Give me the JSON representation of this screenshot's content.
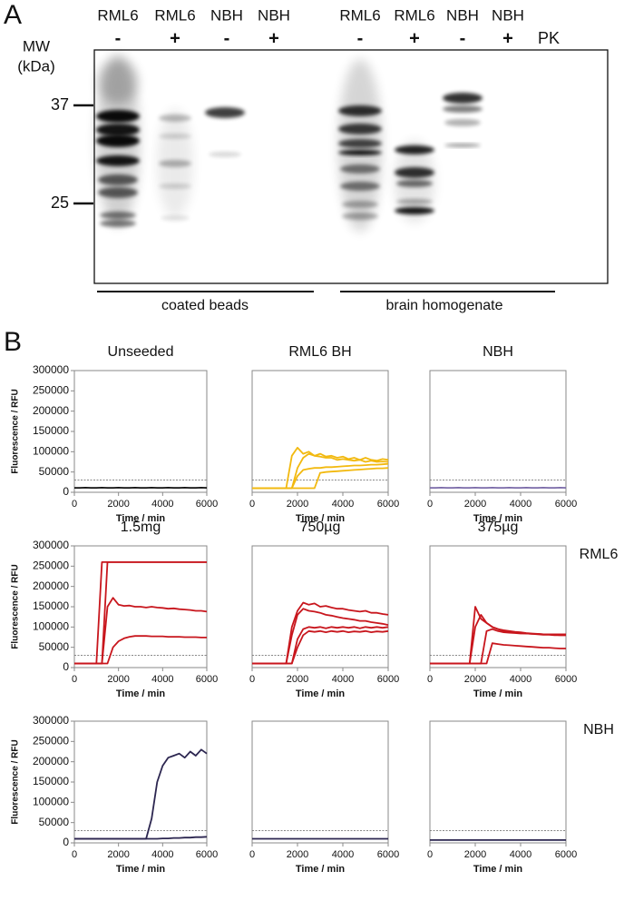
{
  "panel_a": {
    "label": "A",
    "lanes": [
      {
        "sample": "RML6",
        "pk": "-"
      },
      {
        "sample": "RML6",
        "pk": "+"
      },
      {
        "sample": "NBH",
        "pk": "-"
      },
      {
        "sample": "NBH",
        "pk": "+"
      },
      {
        "sample": "RML6",
        "pk": "-"
      },
      {
        "sample": "RML6",
        "pk": "+"
      },
      {
        "sample": "NBH",
        "pk": "-"
      },
      {
        "sample": "NBH",
        "pk": "+"
      }
    ],
    "pk_label": "PK",
    "mw_label": [
      "MW",
      "(kDa)"
    ],
    "markers": [
      "37",
      "25"
    ],
    "groups": [
      "coated beads",
      "brain homogenate"
    ]
  },
  "panel_b": {
    "label": "B"
  },
  "chart_data": [
    {
      "type": "line",
      "title": "Unseeded",
      "xlabel": "Time  / min",
      "ylabel": "Fluorescence / RFU",
      "x": [
        0,
        250,
        500,
        750,
        1000,
        1250,
        1500,
        1750,
        2000,
        2250,
        2500,
        2750,
        3000,
        3250,
        3500,
        3750,
        4000,
        4250,
        4500,
        4750,
        5000,
        5250,
        5500,
        5750,
        6000
      ],
      "xlim": [
        0,
        6000
      ],
      "xticks": [
        0,
        2000,
        4000,
        6000
      ],
      "ylim": [
        0,
        300000
      ],
      "yticks": [
        0,
        50000,
        100000,
        150000,
        200000,
        250000,
        300000
      ],
      "reference_line": 30000,
      "series": [
        {
          "color": "#111111",
          "values": [
            11000,
            11000,
            11500,
            11000,
            11000,
            11500,
            11000,
            11000,
            11500,
            11000,
            11000,
            11500,
            11000,
            11000,
            11500,
            11000,
            11000,
            11500,
            11000,
            11000,
            11500,
            11000,
            11000,
            11500,
            11000
          ]
        }
      ]
    },
    {
      "type": "line",
      "title": "RML6 BH",
      "xlabel": "Time  / min",
      "x": [
        0,
        250,
        500,
        750,
        1000,
        1250,
        1500,
        1750,
        2000,
        2250,
        2500,
        2750,
        3000,
        3250,
        3500,
        3750,
        4000,
        4250,
        4500,
        4750,
        5000,
        5250,
        5500,
        5750,
        6000
      ],
      "xlim": [
        0,
        6000
      ],
      "xticks": [
        0,
        2000,
        4000,
        6000
      ],
      "ylim": [
        0,
        300000
      ],
      "reference_line": 30000,
      "series": [
        {
          "color": "#f2b90f",
          "values": [
            10000,
            10000,
            10000,
            10000,
            10000,
            10000,
            10000,
            90000,
            110000,
            95000,
            100000,
            90000,
            95000,
            88000,
            90000,
            85000,
            88000,
            82000,
            85000,
            80000,
            85000,
            80000,
            78000,
            82000,
            80000
          ]
        },
        {
          "color": "#f2b90f",
          "values": [
            10000,
            10000,
            10000,
            10000,
            10000,
            10000,
            10000,
            10000,
            60000,
            85000,
            95000,
            90000,
            88000,
            85000,
            85000,
            80000,
            82000,
            80000,
            78000,
            80000,
            75000,
            78000,
            75000,
            76000,
            75000
          ]
        },
        {
          "color": "#f2b90f",
          "values": [
            10000,
            10000,
            10000,
            10000,
            10000,
            10000,
            10000,
            10000,
            40000,
            55000,
            58000,
            60000,
            60000,
            62000,
            62000,
            63000,
            64000,
            65000,
            66000,
            66000,
            67000,
            68000,
            68000,
            69000,
            70000
          ]
        },
        {
          "color": "#f2b90f",
          "values": [
            10000,
            10000,
            10000,
            10000,
            10000,
            10000,
            10000,
            10000,
            10000,
            10000,
            10000,
            10000,
            48000,
            50000,
            51000,
            52000,
            53000,
            54000,
            55000,
            56000,
            57000,
            58000,
            59000,
            59000,
            60000
          ]
        }
      ]
    },
    {
      "type": "line",
      "title": "NBH",
      "xlabel": "Time  / min",
      "x": [
        0,
        250,
        500,
        750,
        1000,
        1250,
        1500,
        1750,
        2000,
        2250,
        2500,
        2750,
        3000,
        3250,
        3500,
        3750,
        4000,
        4250,
        4500,
        4750,
        5000,
        5250,
        5500,
        5750,
        6000
      ],
      "xlim": [
        0,
        6000
      ],
      "xticks": [
        0,
        2000,
        4000,
        6000
      ],
      "ylim": [
        0,
        300000
      ],
      "reference_line": 30000,
      "series": [
        {
          "color": "#7a6aa8",
          "values": [
            11000,
            11000,
            11500,
            11000,
            11000,
            11500,
            11000,
            11000,
            11500,
            11000,
            11000,
            11500,
            11000,
            11000,
            11500,
            11000,
            11000,
            11500,
            11000,
            11000,
            11500,
            11000,
            11000,
            11500,
            11000
          ]
        }
      ]
    },
    {
      "type": "line",
      "title": "1.5mg",
      "xlabel": "Time  / min",
      "ylabel": "Fluorescence / RFU",
      "x": [
        0,
        250,
        500,
        750,
        1000,
        1250,
        1500,
        1750,
        2000,
        2250,
        2500,
        2750,
        3000,
        3250,
        3500,
        3750,
        4000,
        4250,
        4500,
        4750,
        5000,
        5250,
        5500,
        5750,
        6000
      ],
      "xlim": [
        0,
        6000
      ],
      "xticks": [
        0,
        2000,
        4000,
        6000
      ],
      "ylim": [
        0,
        300000
      ],
      "yticks": [
        0,
        50000,
        100000,
        150000,
        200000,
        250000,
        300000
      ],
      "reference_line": 30000,
      "series": [
        {
          "color": "#c8161d",
          "values": [
            10000,
            10000,
            10000,
            10000,
            10000,
            260000,
            260000,
            260000,
            260000,
            260000,
            260000,
            260000,
            260000,
            260000,
            260000,
            260000,
            260000,
            260000,
            260000,
            260000,
            260000,
            260000,
            260000,
            260000,
            260000
          ]
        },
        {
          "color": "#c8161d",
          "values": [
            10000,
            10000,
            10000,
            10000,
            10000,
            10000,
            260000,
            260000,
            260000,
            260000,
            260000,
            260000,
            260000,
            260000,
            260000,
            260000,
            260000,
            260000,
            260000,
            260000,
            260000,
            260000,
            260000,
            260000,
            260000
          ]
        },
        {
          "color": "#c8161d",
          "values": [
            10000,
            10000,
            10000,
            10000,
            10000,
            10000,
            150000,
            172000,
            155000,
            152000,
            153000,
            150000,
            150000,
            148000,
            150000,
            148000,
            147000,
            145000,
            146000,
            144000,
            143000,
            142000,
            140000,
            140000,
            138000
          ]
        },
        {
          "color": "#c8161d",
          "values": [
            10000,
            10000,
            10000,
            10000,
            10000,
            10000,
            10000,
            50000,
            65000,
            72000,
            76000,
            78000,
            78000,
            78000,
            77000,
            77000,
            77000,
            76000,
            76000,
            76000,
            75000,
            75000,
            75000,
            74000,
            74000
          ]
        }
      ]
    },
    {
      "type": "line",
      "title": "750µg",
      "xlabel": "Time  / min",
      "x": [
        0,
        250,
        500,
        750,
        1000,
        1250,
        1500,
        1750,
        2000,
        2250,
        2500,
        2750,
        3000,
        3250,
        3500,
        3750,
        4000,
        4250,
        4500,
        4750,
        5000,
        5250,
        5500,
        5750,
        6000
      ],
      "xlim": [
        0,
        6000
      ],
      "xticks": [
        0,
        2000,
        4000,
        6000
      ],
      "ylim": [
        0,
        300000
      ],
      "reference_line": 30000,
      "series": [
        {
          "color": "#c8161d",
          "values": [
            10000,
            10000,
            10000,
            10000,
            10000,
            10000,
            10000,
            100000,
            140000,
            160000,
            155000,
            158000,
            150000,
            152000,
            148000,
            145000,
            145000,
            142000,
            140000,
            138000,
            140000,
            135000,
            135000,
            132000,
            130000
          ]
        },
        {
          "color": "#c8161d",
          "values": [
            10000,
            10000,
            10000,
            10000,
            10000,
            10000,
            10000,
            80000,
            130000,
            145000,
            140000,
            138000,
            135000,
            130000,
            128000,
            125000,
            122000,
            120000,
            118000,
            115000,
            115000,
            112000,
            110000,
            108000,
            105000
          ]
        },
        {
          "color": "#c8161d",
          "values": [
            10000,
            10000,
            10000,
            10000,
            10000,
            10000,
            10000,
            10000,
            70000,
            95000,
            100000,
            98000,
            100000,
            97000,
            100000,
            98000,
            100000,
            98000,
            100000,
            97000,
            100000,
            98000,
            100000,
            98000,
            100000
          ]
        },
        {
          "color": "#c8161d",
          "values": [
            10000,
            10000,
            10000,
            10000,
            10000,
            10000,
            10000,
            10000,
            50000,
            80000,
            90000,
            88000,
            90000,
            87000,
            90000,
            88000,
            90000,
            87000,
            89000,
            88000,
            90000,
            87000,
            89000,
            88000,
            90000
          ]
        }
      ]
    },
    {
      "type": "line",
      "title": "375µg",
      "xlabel": "Time  / min",
      "side_label": "RML6",
      "x": [
        0,
        250,
        500,
        750,
        1000,
        1250,
        1500,
        1750,
        2000,
        2250,
        2500,
        2750,
        3000,
        3250,
        3500,
        3750,
        4000,
        4250,
        4500,
        4750,
        5000,
        5250,
        5500,
        5750,
        6000
      ],
      "xlim": [
        0,
        6000
      ],
      "xticks": [
        0,
        2000,
        4000,
        6000
      ],
      "ylim": [
        0,
        300000
      ],
      "reference_line": 30000,
      "series": [
        {
          "color": "#c8161d",
          "values": [
            10000,
            10000,
            10000,
            10000,
            10000,
            10000,
            10000,
            10000,
            150000,
            120000,
            110000,
            100000,
            95000,
            92000,
            90000,
            88000,
            87000,
            85000,
            84000,
            83000,
            82000,
            82000,
            81000,
            80000,
            80000
          ]
        },
        {
          "color": "#c8161d",
          "values": [
            10000,
            10000,
            10000,
            10000,
            10000,
            10000,
            10000,
            10000,
            100000,
            130000,
            110000,
            100000,
            95000,
            90000,
            88000,
            86000,
            85000,
            84000,
            83000,
            82000,
            81000,
            81000,
            80000,
            80000,
            80000
          ]
        },
        {
          "color": "#c8161d",
          "values": [
            10000,
            10000,
            10000,
            10000,
            10000,
            10000,
            10000,
            10000,
            10000,
            10000,
            90000,
            95000,
            90000,
            87000,
            86000,
            85000,
            84000,
            84000,
            83000,
            83000,
            82000,
            82000,
            82000,
            82000,
            82000
          ]
        },
        {
          "color": "#c8161d",
          "values": [
            10000,
            10000,
            10000,
            10000,
            10000,
            10000,
            10000,
            10000,
            10000,
            10000,
            10000,
            60000,
            58000,
            56000,
            55000,
            54000,
            53000,
            52000,
            51000,
            50000,
            49000,
            49000,
            48000,
            47000,
            47000
          ]
        }
      ]
    },
    {
      "type": "line",
      "xlabel": "Time  / min",
      "ylabel": "Fluorescence / RFU",
      "x": [
        0,
        250,
        500,
        750,
        1000,
        1250,
        1500,
        1750,
        2000,
        2250,
        2500,
        2750,
        3000,
        3250,
        3500,
        3750,
        4000,
        4250,
        4500,
        4750,
        5000,
        5250,
        5500,
        5750,
        6000
      ],
      "xlim": [
        0,
        6000
      ],
      "xticks": [
        0,
        2000,
        4000,
        6000
      ],
      "ylim": [
        0,
        300000
      ],
      "yticks": [
        0,
        50000,
        100000,
        150000,
        200000,
        250000,
        300000
      ],
      "reference_line": 30000,
      "series": [
        {
          "color": "#2c2650",
          "values": [
            10000,
            10000,
            10000,
            10000,
            10000,
            10000,
            10000,
            10000,
            10000,
            10000,
            10000,
            10000,
            10000,
            10000,
            60000,
            150000,
            190000,
            210000,
            215000,
            220000,
            210000,
            225000,
            215000,
            230000,
            220000
          ]
        },
        {
          "color": "#2c2650",
          "values": [
            10000,
            10000,
            10000,
            10000,
            10000,
            10000,
            10000,
            10000,
            10000,
            10000,
            10000,
            10000,
            10000,
            10000,
            10000,
            10000,
            11000,
            11000,
            12000,
            12000,
            13000,
            13000,
            14000,
            14000,
            15000
          ]
        }
      ]
    },
    {
      "type": "line",
      "xlabel": "Time  / min",
      "x": [
        0,
        250,
        500,
        750,
        1000,
        1250,
        1500,
        1750,
        2000,
        2250,
        2500,
        2750,
        3000,
        3250,
        3500,
        3750,
        4000,
        4250,
        4500,
        4750,
        5000,
        5250,
        5500,
        5750,
        6000
      ],
      "xlim": [
        0,
        6000
      ],
      "xticks": [
        0,
        2000,
        4000,
        6000
      ],
      "ylim": [
        0,
        300000
      ],
      "reference_line": 30000,
      "series": [
        {
          "color": "#2c2650",
          "values": [
            10000,
            10000,
            10000,
            10000,
            10000,
            10000,
            10000,
            10000,
            10000,
            10000,
            10000,
            10000,
            10000,
            10000,
            10000,
            10000,
            10000,
            10000,
            10000,
            10000,
            10000,
            10000,
            10000,
            10000,
            10000
          ]
        }
      ]
    },
    {
      "type": "line",
      "xlabel": "Time  / min",
      "side_label": "NBH",
      "x": [
        0,
        250,
        500,
        750,
        1000,
        1250,
        1500,
        1750,
        2000,
        2250,
        2500,
        2750,
        3000,
        3250,
        3500,
        3750,
        4000,
        4250,
        4500,
        4750,
        5000,
        5250,
        5500,
        5750,
        6000
      ],
      "xlim": [
        0,
        6000
      ],
      "xticks": [
        0,
        2000,
        4000,
        6000
      ],
      "ylim": [
        0,
        300000
      ],
      "reference_line": 30000,
      "series": [
        {
          "color": "#2c2650",
          "values": [
            7000,
            7000,
            7000,
            7000,
            7000,
            7000,
            7000,
            7000,
            7000,
            7000,
            7000,
            7000,
            7000,
            7000,
            7000,
            7000,
            7000,
            7000,
            7000,
            7000,
            7000,
            7000,
            7000,
            7000,
            7000
          ]
        }
      ]
    }
  ]
}
